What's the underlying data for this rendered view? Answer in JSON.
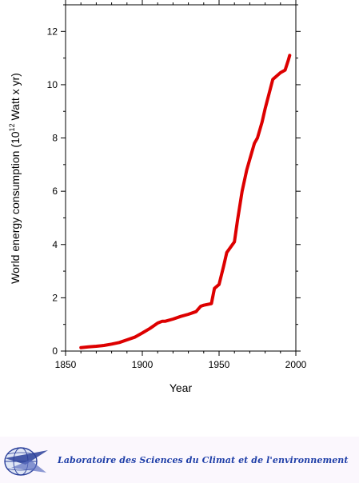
{
  "chart_data": {
    "type": "line",
    "title": "",
    "xlabel": "Year",
    "ylabel": "World energy consumption (10",
    "ylabel_superscript": "12",
    "ylabel_suffix": " Watt x yr)",
    "xlim": [
      1850,
      2000
    ],
    "ylim": [
      0,
      13
    ],
    "x_ticks": [
      1850,
      1900,
      1950,
      2000
    ],
    "x_tick_labels": [
      "1850",
      "1900",
      "1950",
      "2000"
    ],
    "y_ticks": [
      0,
      2,
      4,
      6,
      8,
      10,
      12
    ],
    "y_tick_labels": [
      "0",
      "2",
      "4",
      "6",
      "8",
      "10",
      "12"
    ],
    "grid": false,
    "series": [
      {
        "color": "#dd0000",
        "x": [
          1860,
          1865,
          1870,
          1875,
          1880,
          1885,
          1890,
          1895,
          1900,
          1905,
          1910,
          1913,
          1915,
          1920,
          1925,
          1930,
          1935,
          1938,
          1940,
          1945,
          1947,
          1950,
          1953,
          1955,
          1960,
          1962,
          1965,
          1968,
          1970,
          1973,
          1975,
          1978,
          1980,
          1985,
          1990,
          1993,
          1995,
          1996
        ],
        "y": [
          0.13,
          0.16,
          0.18,
          0.21,
          0.26,
          0.32,
          0.42,
          0.52,
          0.68,
          0.85,
          1.05,
          1.12,
          1.12,
          1.2,
          1.3,
          1.38,
          1.48,
          1.68,
          1.72,
          1.78,
          2.35,
          2.5,
          3.2,
          3.7,
          4.1,
          4.9,
          6.0,
          6.8,
          7.2,
          7.8,
          8.0,
          8.6,
          9.1,
          10.2,
          10.45,
          10.55,
          10.9,
          11.1
        ]
      }
    ]
  },
  "footer": {
    "lab_name": "Laboratoire des Sciences du Climat et de l'environnement",
    "logo_icon": "globe-logo-icon"
  }
}
